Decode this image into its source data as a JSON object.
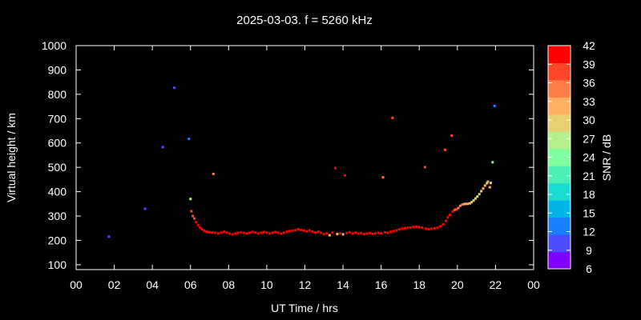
{
  "chart_data": {
    "type": "scatter",
    "title": "2025-03-03. f = 5260 kHz",
    "xlabel": "UT Time / hrs",
    "ylabel": "Virtual height / km",
    "xlim": [
      0,
      24
    ],
    "ylim": [
      80,
      1000
    ],
    "x_ticks": [
      "00",
      "02",
      "04",
      "06",
      "08",
      "10",
      "12",
      "14",
      "16",
      "18",
      "20",
      "22",
      "00"
    ],
    "y_ticks": [
      100,
      200,
      300,
      400,
      500,
      600,
      700,
      800,
      900,
      1000
    ],
    "grid": false,
    "colorbar": {
      "label": "SNR / dB",
      "min": 6,
      "max": 42,
      "ticks": [
        6,
        9,
        12,
        15,
        18,
        21,
        24,
        27,
        30,
        33,
        36,
        39,
        42
      ],
      "colors": [
        "#8000ff",
        "#4c4cff",
        "#1a80ff",
        "#00b4e8",
        "#1adcd0",
        "#4cf0b4",
        "#80ffa0",
        "#b4f08c",
        "#e8d070",
        "#ffb060",
        "#ff7c46",
        "#ff4628",
        "#ff0000"
      ]
    },
    "series": [
      {
        "points": [
          [
            1.72,
            215,
            10
          ],
          [
            3.62,
            330,
            10
          ],
          [
            4.55,
            583,
            10
          ],
          [
            5.15,
            827,
            10
          ],
          [
            5.92,
            617,
            12
          ],
          [
            6.0,
            370,
            27
          ],
          [
            6.05,
            320,
            39
          ],
          [
            6.12,
            300,
            40
          ],
          [
            6.2,
            290,
            40
          ],
          [
            6.3,
            275,
            41
          ],
          [
            6.4,
            262,
            41
          ],
          [
            6.5,
            252,
            41
          ],
          [
            6.6,
            246,
            41
          ],
          [
            6.7,
            240,
            41
          ],
          [
            6.8,
            237,
            41
          ],
          [
            6.9,
            234,
            41
          ],
          [
            7.0,
            233,
            41
          ],
          [
            7.2,
            473,
            37
          ],
          [
            7.15,
            232,
            41
          ],
          [
            7.3,
            231,
            41
          ],
          [
            7.45,
            229,
            41
          ],
          [
            7.6,
            232,
            41
          ],
          [
            7.75,
            235,
            41
          ],
          [
            7.9,
            232,
            41
          ],
          [
            8.05,
            228,
            41
          ],
          [
            8.2,
            225,
            41
          ],
          [
            8.35,
            228,
            41
          ],
          [
            8.5,
            231,
            41
          ],
          [
            8.65,
            233,
            41
          ],
          [
            8.8,
            231,
            41
          ],
          [
            8.95,
            229,
            41
          ],
          [
            9.1,
            231,
            41
          ],
          [
            9.25,
            234,
            41
          ],
          [
            9.4,
            232,
            41
          ],
          [
            9.55,
            229,
            41
          ],
          [
            9.7,
            231,
            41
          ],
          [
            9.85,
            234,
            41
          ],
          [
            10.0,
            232,
            41
          ],
          [
            10.15,
            229,
            41
          ],
          [
            10.3,
            231,
            41
          ],
          [
            10.45,
            234,
            41
          ],
          [
            10.6,
            231,
            41
          ],
          [
            10.75,
            228,
            41
          ],
          [
            10.9,
            231,
            41
          ],
          [
            11.05,
            235,
            41
          ],
          [
            11.2,
            238,
            41
          ],
          [
            11.35,
            240,
            41
          ],
          [
            11.5,
            242,
            41
          ],
          [
            11.65,
            246,
            41
          ],
          [
            11.8,
            243,
            41
          ],
          [
            11.95,
            240,
            41
          ],
          [
            12.1,
            237,
            41
          ],
          [
            12.25,
            241,
            41
          ],
          [
            12.4,
            236,
            41
          ],
          [
            12.55,
            232,
            41
          ],
          [
            12.7,
            235,
            41
          ],
          [
            12.85,
            231,
            41
          ],
          [
            13.0,
            226,
            41
          ],
          [
            13.15,
            229,
            41
          ],
          [
            13.3,
            221,
            33
          ],
          [
            13.45,
            232,
            41
          ],
          [
            13.6,
            497,
            41
          ],
          [
            13.7,
            226,
            33
          ],
          [
            13.85,
            229,
            41
          ],
          [
            14.0,
            225,
            33
          ],
          [
            14.1,
            467,
            41
          ],
          [
            14.2,
            230,
            41
          ],
          [
            14.35,
            233,
            41
          ],
          [
            14.5,
            229,
            41
          ],
          [
            14.65,
            231,
            41
          ],
          [
            14.8,
            228,
            41
          ],
          [
            14.95,
            230,
            41
          ],
          [
            15.1,
            226,
            41
          ],
          [
            15.25,
            228,
            41
          ],
          [
            15.4,
            230,
            41
          ],
          [
            15.55,
            227,
            41
          ],
          [
            15.7,
            229,
            41
          ],
          [
            15.85,
            231,
            41
          ],
          [
            16.0,
            229,
            41
          ],
          [
            16.1,
            459,
            36
          ],
          [
            16.2,
            233,
            41
          ],
          [
            16.35,
            231,
            41
          ],
          [
            16.5,
            235,
            41
          ],
          [
            16.6,
            703,
            38
          ],
          [
            16.65,
            238,
            41
          ],
          [
            16.8,
            241,
            41
          ],
          [
            16.95,
            245,
            41
          ],
          [
            17.1,
            248,
            41
          ],
          [
            17.25,
            250,
            41
          ],
          [
            17.4,
            252,
            41
          ],
          [
            17.55,
            253,
            41
          ],
          [
            17.7,
            255,
            41
          ],
          [
            17.85,
            256,
            41
          ],
          [
            18.0,
            254,
            41
          ],
          [
            18.15,
            252,
            41
          ],
          [
            18.3,
            501,
            38
          ],
          [
            18.35,
            248,
            41
          ],
          [
            18.5,
            246,
            41
          ],
          [
            18.65,
            248,
            41
          ],
          [
            18.8,
            250,
            41
          ],
          [
            18.95,
            252,
            41
          ],
          [
            19.1,
            258,
            41
          ],
          [
            19.25,
            266,
            41
          ],
          [
            19.35,
            572,
            38
          ],
          [
            19.4,
            280,
            41
          ],
          [
            19.5,
            295,
            41
          ],
          [
            19.6,
            305,
            41
          ],
          [
            19.7,
            630,
            38
          ],
          [
            19.75,
            318,
            41
          ],
          [
            19.85,
            325,
            40
          ],
          [
            19.95,
            327,
            39
          ],
          [
            20.05,
            333,
            37
          ],
          [
            20.15,
            342,
            36
          ],
          [
            20.25,
            347,
            35
          ],
          [
            20.35,
            349,
            34
          ],
          [
            20.45,
            350,
            33
          ],
          [
            20.55,
            350,
            32
          ],
          [
            20.65,
            352,
            32
          ],
          [
            20.75,
            357,
            31
          ],
          [
            20.85,
            364,
            30
          ],
          [
            20.95,
            372,
            29
          ],
          [
            21.05,
            380,
            28
          ],
          [
            21.15,
            390,
            29
          ],
          [
            21.25,
            402,
            31
          ],
          [
            21.35,
            413,
            32
          ],
          [
            21.45,
            425,
            33
          ],
          [
            21.55,
            435,
            30
          ],
          [
            21.6,
            441,
            33
          ],
          [
            21.7,
            418,
            33
          ],
          [
            21.75,
            436,
            31
          ],
          [
            21.85,
            521,
            24
          ],
          [
            21.95,
            752,
            12
          ]
        ]
      }
    ]
  }
}
